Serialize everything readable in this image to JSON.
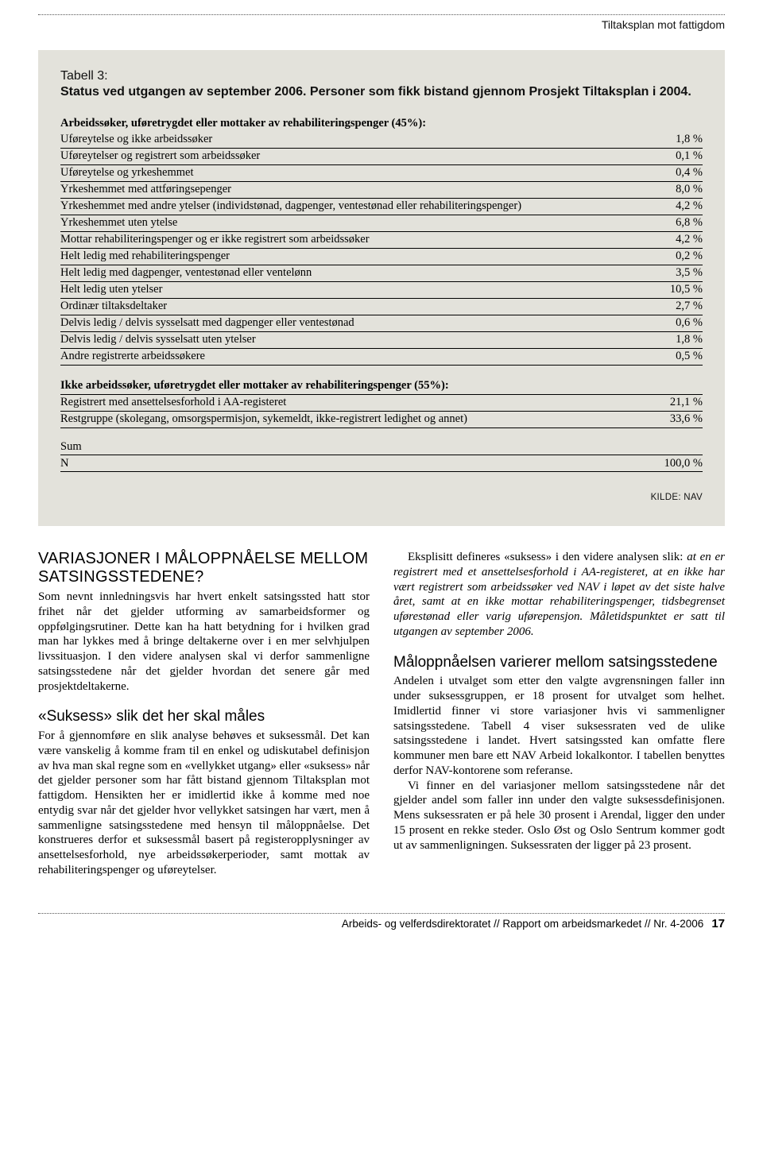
{
  "header": {
    "running_title": "Tiltaksplan mot fattigdom"
  },
  "table": {
    "caption_label": "Tabell 3:",
    "caption_title": "Status ved utgangen av september 2006. Personer som fikk bistand gjennom Prosjekt Tiltaksplan i 2004.",
    "section_a_head": "Arbeidssøker, uføretrygdet eller mottaker av rehabiliteringspenger (45%):",
    "rows_a": [
      {
        "label": "Uføreytelse og ikke arbeidssøker",
        "value": "1,8 %"
      },
      {
        "label": "Uføreytelser og registrert som arbeidssøker",
        "value": "0,1 %"
      },
      {
        "label": "Uføreytelse og yrkeshemmet",
        "value": "0,4 %"
      },
      {
        "label": "Yrkeshemmet med attføringsepenger",
        "value": "8,0 %"
      },
      {
        "label": "Yrkeshemmet med andre ytelser (individstønad, dagpenger, ventestønad eller rehabiliteringspenger)",
        "value": "4,2 %"
      },
      {
        "label": "Yrkeshemmet uten ytelse",
        "value": "6,8 %"
      },
      {
        "label": "Mottar rehabiliteringspenger og er ikke registrert som arbeidssøker",
        "value": "4,2 %"
      },
      {
        "label": "Helt ledig med rehabiliteringspenger",
        "value": "0,2 %"
      },
      {
        "label": "Helt ledig med dagpenger, ventestønad eller ventelønn",
        "value": "3,5 %"
      },
      {
        "label": "Helt ledig uten ytelser",
        "value": "10,5 %"
      },
      {
        "label": "Ordinær tiltaksdeltaker",
        "value": "2,7 %"
      },
      {
        "label": "Delvis ledig / delvis sysselsatt med dagpenger eller ventestønad",
        "value": "0,6 %"
      },
      {
        "label": "Delvis ledig / delvis sysselsatt uten ytelser",
        "value": "1,8 %"
      },
      {
        "label": "Andre registrerte arbeidssøkere",
        "value": "0,5 %"
      }
    ],
    "section_b_head": "Ikke arbeidssøker, uføretrygdet eller mottaker av rehabiliteringspenger (55%):",
    "rows_b": [
      {
        "label": "Registrert med ansettelsesforhold i AA-registeret",
        "value": "21,1 %"
      },
      {
        "label": "Restgruppe (skolegang, omsorgspermisjon, sykemeldt, ikke-registrert ledighet og annet)",
        "value": "33,6 %"
      }
    ],
    "sum_label": "Sum",
    "n_label": "N",
    "n_value": "100,0 %",
    "source": "KILDE: NAV"
  },
  "body": {
    "left": {
      "h1": "VARIASJONER I MÅLOPPNÅELSE MELLOM SATSINGSSTEDENE?",
      "p1": "Som nevnt innledningsvis har hvert enkelt satsingssted hatt stor frihet når det gjelder utforming av samarbeidsformer og oppfølgingsrutiner. Dette kan ha hatt betydning for i hvilken grad man har lykkes med å bringe deltakerne over i en mer selvhjulpen livssituasjon. I den videre analysen skal vi derfor sammenligne satsingsstedene når det gjelder hvordan det senere går med prosjektdeltakerne.",
      "h2": "«Suksess» slik det her skal måles",
      "p2": "For å gjennomføre en slik analyse behøves et suksessmål. Det kan være vanskelig å komme fram til en enkel og udiskutabel definisjon av hva man skal regne som en «vellykket utgang» eller «suksess» når det gjelder personer som har fått bistand gjennom Tiltaksplan mot fattigdom. Hensikten her er imidlertid ikke å komme med noe entydig svar når det gjelder hvor vellykket satsingen har vært, men å sammenligne satsingsstedene med hensyn til måloppnåelse. Det konstrueres derfor et suksessmål basert på registeropplysninger av ansettelsesforhold, nye arbeidssøkerperioder, samt mottak av rehabiliteringspenger og uføreytelser."
    },
    "right": {
      "p1a": "Eksplisitt defineres «suksess» i den videre analysen slik: ",
      "p1b": "at en er registrert med et ansettelsesforhold i AA-registeret, at en ikke har vært registrert som arbeidssøker ved NAV i løpet av det siste halve året, samt at en ikke mottar rehabiliteringspenger, tidsbegrenset uførestønad eller varig uførepensjon. Måletidspunktet er satt til utgangen av september 2006.",
      "h1": "Måloppnåelsen varierer mellom satsingsstedene",
      "p2": "Andelen i utvalget som etter den valgte avgrensningen faller inn under suksessgruppen, er 18 prosent for utvalget som helhet. Imidlertid finner vi store variasjoner hvis vi sammenligner satsingsstedene. Tabell 4 viser suksessraten ved de ulike satsingsstedene i landet. Hvert satsingssted kan omfatte flere kommuner men bare ett NAV Arbeid lokalkontor. I tabellen benyttes derfor NAV-kontorene som referanse.",
      "p3": "Vi finner en del variasjoner mellom satsingsstedene når det gjelder andel som faller inn under den valgte suksessdefinisjonen. Mens suksessraten er på hele 30 prosent i Arendal, ligger den under 15 prosent en rekke steder. Oslo Øst og Oslo Sentrum kommer godt ut av sammenligningen. Suksessraten der ligger på 23 prosent."
    }
  },
  "footer": {
    "text": "Arbeids- og velferdsdirektoratet // Rapport om arbeidsmarkedet // Nr. 4-2006",
    "page": "17"
  }
}
